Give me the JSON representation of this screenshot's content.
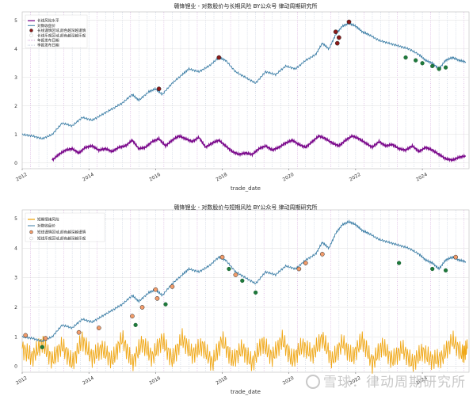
{
  "chart_data": [
    {
      "type": "line",
      "title": "赣锋锂业 - 对数股价与长期风险 BY公众号 律动周期研究所",
      "xlabel": "trade_date",
      "ylabel": "",
      "x_ticks": [
        "2012",
        "2014",
        "2016",
        "2018",
        "2020",
        "2022",
        "2024"
      ],
      "y_ticks": [
        0,
        1,
        2,
        3,
        4,
        5
      ],
      "ylim": [
        -0.2,
        5.3
      ],
      "xlim": [
        2012.0,
        2025.4
      ],
      "legend": {
        "position": "top-left",
        "entries": [
          "长线风险水平",
          "对数收盘价",
          "长线谨慎区域,颜色越深越谨慎",
          "长线乐观区域,颜色越深越乐观",
          "年报发布日期",
          "季报发布日期"
        ]
      },
      "grid": true,
      "series": [
        {
          "name": "长线风险水平",
          "color": "#7B0A8C",
          "x": [
            2012.9,
            2013.1,
            2013.3,
            2013.5,
            2013.7,
            2013.9,
            2014.1,
            2014.3,
            2014.5,
            2014.7,
            2014.9,
            2015.1,
            2015.3,
            2015.5,
            2015.7,
            2015.9,
            2016.1,
            2016.3,
            2016.5,
            2016.7,
            2016.9,
            2017.1,
            2017.3,
            2017.5,
            2017.7,
            2017.9,
            2018.1,
            2018.3,
            2018.5,
            2018.7,
            2018.9,
            2019.1,
            2019.3,
            2019.5,
            2019.7,
            2019.9,
            2020.1,
            2020.3,
            2020.5,
            2020.7,
            2020.9,
            2021.1,
            2021.3,
            2021.5,
            2021.7,
            2021.9,
            2022.1,
            2022.3,
            2022.5,
            2022.7,
            2022.9,
            2023.1,
            2023.3,
            2023.5,
            2023.7,
            2023.9,
            2024.1,
            2024.3,
            2024.5,
            2024.7,
            2024.9,
            2025.1,
            2025.3
          ],
          "values": [
            0.1,
            0.3,
            0.45,
            0.5,
            0.35,
            0.55,
            0.6,
            0.45,
            0.5,
            0.4,
            0.55,
            0.6,
            0.8,
            0.5,
            0.55,
            0.75,
            0.85,
            0.6,
            0.8,
            0.95,
            0.85,
            0.75,
            0.9,
            0.55,
            0.7,
            0.8,
            0.6,
            0.4,
            0.3,
            0.35,
            0.3,
            0.5,
            0.6,
            0.45,
            0.55,
            0.7,
            0.8,
            0.65,
            0.55,
            0.75,
            0.95,
            0.85,
            0.7,
            0.6,
            0.8,
            0.95,
            0.85,
            0.7,
            0.55,
            0.75,
            0.6,
            0.65,
            0.5,
            0.45,
            0.6,
            0.4,
            0.55,
            0.45,
            0.3,
            0.15,
            0.1,
            0.2,
            0.25
          ]
        },
        {
          "name": "对数收盘价",
          "color": "#3C7EA6",
          "x": [
            2012.0,
            2012.3,
            2012.6,
            2012.9,
            2013.2,
            2013.5,
            2013.8,
            2014.1,
            2014.4,
            2014.7,
            2015.0,
            2015.3,
            2015.5,
            2015.8,
            2016.0,
            2016.2,
            2016.5,
            2016.8,
            2017.0,
            2017.3,
            2017.6,
            2017.9,
            2018.1,
            2018.4,
            2018.7,
            2019.0,
            2019.3,
            2019.6,
            2019.9,
            2020.2,
            2020.5,
            2020.8,
            2021.0,
            2021.2,
            2021.4,
            2021.6,
            2021.8,
            2022.0,
            2022.2,
            2022.4,
            2022.7,
            2023.0,
            2023.3,
            2023.6,
            2023.9,
            2024.1,
            2024.3,
            2024.5,
            2024.7,
            2024.9,
            2025.1,
            2025.3
          ],
          "values": [
            1.0,
            0.95,
            0.85,
            1.0,
            1.4,
            1.3,
            1.6,
            1.5,
            1.7,
            1.9,
            2.1,
            2.4,
            2.2,
            2.5,
            2.6,
            2.4,
            2.8,
            3.1,
            3.3,
            3.2,
            3.4,
            3.7,
            3.6,
            3.2,
            3.0,
            2.8,
            3.2,
            3.1,
            3.4,
            3.3,
            3.6,
            3.8,
            4.2,
            4.0,
            4.5,
            4.8,
            4.9,
            4.8,
            4.6,
            4.5,
            4.3,
            4.2,
            4.1,
            4.0,
            3.8,
            3.6,
            3.5,
            3.3,
            3.6,
            3.7,
            3.6,
            3.55
          ]
        }
      ],
      "caution_points": [
        {
          "x": 2016.1,
          "y": 2.6
        },
        {
          "x": 2017.9,
          "y": 3.7
        },
        {
          "x": 2021.4,
          "y": 4.6
        },
        {
          "x": 2021.5,
          "y": 4.4
        },
        {
          "x": 2021.45,
          "y": 4.2
        },
        {
          "x": 2021.8,
          "y": 4.95
        }
      ],
      "optimism_points": [
        {
          "x": 2023.5,
          "y": 3.7
        },
        {
          "x": 2023.8,
          "y": 3.6
        },
        {
          "x": 2024.0,
          "y": 3.5
        },
        {
          "x": 2024.3,
          "y": 3.4
        },
        {
          "x": 2024.5,
          "y": 3.3
        },
        {
          "x": 2024.7,
          "y": 3.35
        }
      ]
    },
    {
      "type": "line",
      "title": "赣锋锂业 - 对数股价与短期风险 BY公众号 律动周期研究所",
      "xlabel": "trade_date",
      "ylabel": "",
      "x_ticks": [
        "2012",
        "2014",
        "2016",
        "2018",
        "2020",
        "2022",
        "2024"
      ],
      "y_ticks": [
        0,
        1,
        2,
        3,
        4,
        5
      ],
      "ylim": [
        -0.2,
        5.3
      ],
      "xlim": [
        2012.0,
        2025.4
      ],
      "legend": {
        "position": "top-left",
        "entries": [
          "短期情绪风险",
          "对数收盘价",
          "短线谨慎区域,颜色越深越谨慎",
          "短线乐观区域,颜色越深越乐观"
        ]
      },
      "grid": true,
      "series": [
        {
          "name": "短期情绪风险",
          "color": "#F0A817",
          "x": [
            2012.0,
            2012.3,
            2012.6,
            2012.9,
            2013.2,
            2013.5,
            2013.8,
            2014.1,
            2014.4,
            2014.7,
            2015.0,
            2015.3,
            2015.6,
            2015.9,
            2016.2,
            2016.5,
            2016.8,
            2017.1,
            2017.4,
            2017.7,
            2018.0,
            2018.3,
            2018.6,
            2018.9,
            2019.2,
            2019.5,
            2019.8,
            2020.1,
            2020.4,
            2020.7,
            2021.0,
            2021.3,
            2021.6,
            2021.9,
            2022.2,
            2022.5,
            2022.8,
            2023.1,
            2023.4,
            2023.7,
            2024.0,
            2024.3,
            2024.6,
            2024.9,
            2025.2,
            2025.35
          ],
          "values": [
            0.6,
            0.3,
            0.8,
            0.2,
            0.7,
            0.1,
            0.9,
            0.3,
            0.6,
            0.2,
            0.95,
            0.1,
            0.8,
            0.3,
            0.9,
            0.2,
            0.95,
            0.4,
            0.7,
            0.1,
            0.9,
            0.2,
            0.6,
            0.1,
            0.8,
            0.3,
            0.9,
            0.2,
            0.7,
            0.4,
            0.95,
            0.2,
            0.8,
            0.3,
            0.9,
            0.1,
            0.7,
            0.2,
            0.6,
            0.1,
            0.5,
            0.2,
            0.3,
            0.9,
            0.4,
            0.6
          ]
        },
        {
          "name": "对数收盘价",
          "color": "#3C7EA6",
          "x": [
            2012.0,
            2012.3,
            2012.6,
            2012.9,
            2013.2,
            2013.5,
            2013.8,
            2014.1,
            2014.4,
            2014.7,
            2015.0,
            2015.3,
            2015.5,
            2015.8,
            2016.0,
            2016.2,
            2016.5,
            2016.8,
            2017.0,
            2017.3,
            2017.6,
            2017.9,
            2018.1,
            2018.4,
            2018.7,
            2019.0,
            2019.3,
            2019.6,
            2019.9,
            2020.2,
            2020.5,
            2020.8,
            2021.0,
            2021.2,
            2021.4,
            2021.6,
            2021.8,
            2022.0,
            2022.2,
            2022.4,
            2022.7,
            2023.0,
            2023.3,
            2023.6,
            2023.9,
            2024.1,
            2024.3,
            2024.5,
            2024.7,
            2024.9,
            2025.1,
            2025.3
          ],
          "values": [
            1.0,
            0.95,
            0.85,
            1.0,
            1.4,
            1.3,
            1.6,
            1.5,
            1.7,
            1.9,
            2.1,
            2.4,
            2.2,
            2.5,
            2.6,
            2.4,
            2.8,
            3.1,
            3.3,
            3.2,
            3.4,
            3.7,
            3.6,
            3.2,
            3.0,
            2.8,
            3.2,
            3.1,
            3.4,
            3.3,
            3.6,
            3.8,
            4.2,
            4.0,
            4.5,
            4.8,
            4.9,
            4.8,
            4.6,
            4.5,
            4.3,
            4.2,
            4.1,
            4.0,
            3.8,
            3.6,
            3.5,
            3.3,
            3.6,
            3.7,
            3.6,
            3.55
          ]
        }
      ],
      "caution_points": [
        {
          "x": 2012.1,
          "y": 1.05
        },
        {
          "x": 2012.7,
          "y": 0.95
        },
        {
          "x": 2013.7,
          "y": 1.15
        },
        {
          "x": 2014.3,
          "y": 1.3
        },
        {
          "x": 2015.3,
          "y": 1.7
        },
        {
          "x": 2015.6,
          "y": 2.0
        },
        {
          "x": 2016.0,
          "y": 2.6
        },
        {
          "x": 2016.05,
          "y": 2.3
        },
        {
          "x": 2016.5,
          "y": 2.7
        },
        {
          "x": 2018.0,
          "y": 3.7
        },
        {
          "x": 2018.4,
          "y": 3.1
        },
        {
          "x": 2020.3,
          "y": 3.3
        },
        {
          "x": 2020.5,
          "y": 3.5
        },
        {
          "x": 2021.0,
          "y": 3.8
        },
        {
          "x": 2025.0,
          "y": 3.7
        }
      ],
      "optimism_points": [
        {
          "x": 2012.6,
          "y": 0.65
        },
        {
          "x": 2015.4,
          "y": 1.4
        },
        {
          "x": 2016.3,
          "y": 2.1
        },
        {
          "x": 2018.2,
          "y": 3.3
        },
        {
          "x": 2018.6,
          "y": 2.9
        },
        {
          "x": 2019.0,
          "y": 2.5
        },
        {
          "x": 2023.3,
          "y": 3.5
        },
        {
          "x": 2024.3,
          "y": 3.3
        },
        {
          "x": 2024.7,
          "y": 3.25
        }
      ]
    }
  ],
  "colors": {
    "caution_fill": "#8B1A1A",
    "optimism_fill": "#1E7A3C",
    "annual_report_line": "#B56BC4",
    "quarterly_report_line": "#9AA9C6",
    "grid": "#DDDDDD"
  },
  "watermark": {
    "text": "雪球：律动周期研究所"
  }
}
